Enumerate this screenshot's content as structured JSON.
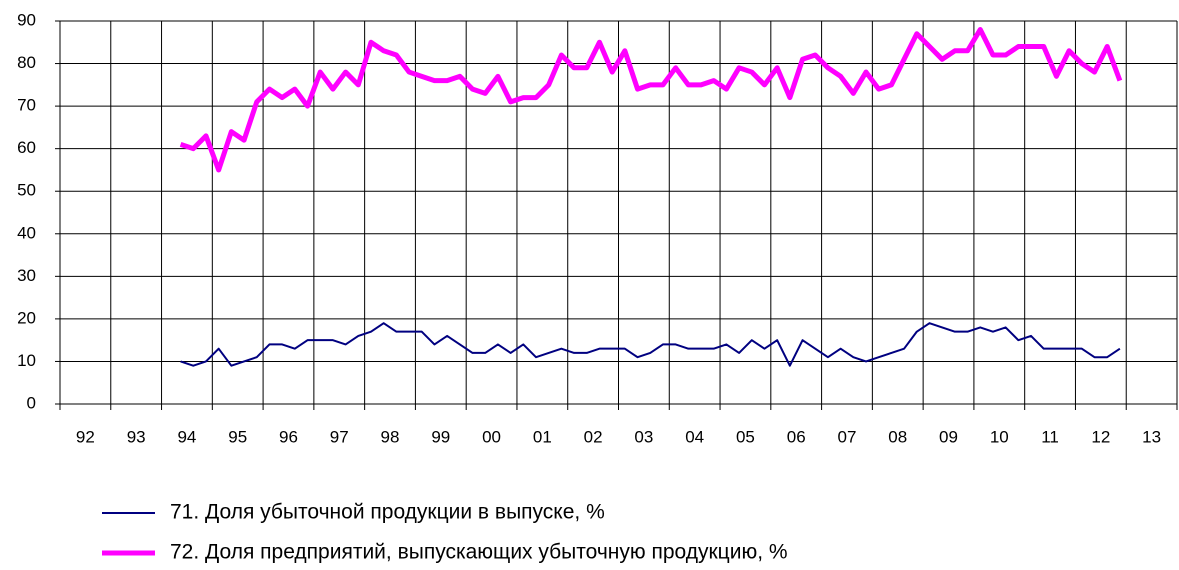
{
  "chart_data": {
    "type": "line",
    "xlim": [
      1992,
      2014
    ],
    "xticks": [
      {
        "value": 1992.5,
        "label": "92"
      },
      {
        "value": 1993.5,
        "label": "93"
      },
      {
        "value": 1994.5,
        "label": "94"
      },
      {
        "value": 1995.5,
        "label": "95"
      },
      {
        "value": 1996.5,
        "label": "96"
      },
      {
        "value": 1997.5,
        "label": "97"
      },
      {
        "value": 1998.5,
        "label": "98"
      },
      {
        "value": 1999.5,
        "label": "99"
      },
      {
        "value": 2000.5,
        "label": "00"
      },
      {
        "value": 2001.5,
        "label": "01"
      },
      {
        "value": 2002.5,
        "label": "02"
      },
      {
        "value": 2003.5,
        "label": "03"
      },
      {
        "value": 2004.5,
        "label": "04"
      },
      {
        "value": 2005.5,
        "label": "05"
      },
      {
        "value": 2006.5,
        "label": "06"
      },
      {
        "value": 2007.5,
        "label": "07"
      },
      {
        "value": 2008.5,
        "label": "08"
      },
      {
        "value": 2009.5,
        "label": "09"
      },
      {
        "value": 2010.5,
        "label": "10"
      },
      {
        "value": 2011.5,
        "label": "11"
      },
      {
        "value": 2012.5,
        "label": "12"
      },
      {
        "value": 2013.5,
        "label": "13"
      }
    ],
    "ylim": [
      0,
      90
    ],
    "yticks": [
      0,
      10,
      20,
      30,
      40,
      50,
      60,
      70,
      80,
      90
    ],
    "grid": true,
    "x": [
      1994.375,
      1994.625,
      1994.875,
      1995.125,
      1995.375,
      1995.625,
      1995.875,
      1996.125,
      1996.375,
      1996.625,
      1996.875,
      1997.125,
      1997.375,
      1997.625,
      1997.875,
      1998.125,
      1998.375,
      1998.625,
      1998.875,
      1999.125,
      1999.375,
      1999.625,
      1999.875,
      2000.125,
      2000.375,
      2000.625,
      2000.875,
      2001.125,
      2001.375,
      2001.625,
      2001.875,
      2002.125,
      2002.375,
      2002.625,
      2002.875,
      2003.125,
      2003.375,
      2003.625,
      2003.875,
      2004.125,
      2004.375,
      2004.625,
      2004.875,
      2005.125,
      2005.375,
      2005.625,
      2005.875,
      2006.125,
      2006.375,
      2006.625,
      2006.875,
      2007.125,
      2007.375,
      2007.625,
      2007.875,
      2008.125,
      2008.375,
      2008.625,
      2008.875,
      2009.125,
      2009.375,
      2009.625,
      2009.875,
      2010.125,
      2010.375,
      2010.625,
      2010.875,
      2011.125,
      2011.375,
      2011.625,
      2011.875,
      2012.125,
      2012.375,
      2012.625,
      2012.875
    ],
    "series": [
      {
        "name": "71. Доля убыточной продукции в выпуске, %",
        "color": "#000080",
        "width": 2,
        "values": [
          10,
          9,
          10,
          13,
          9,
          10,
          11,
          14,
          14,
          13,
          15,
          15,
          15,
          14,
          16,
          17,
          19,
          17,
          17,
          17,
          14,
          16,
          14,
          12,
          12,
          14,
          12,
          14,
          11,
          12,
          13,
          12,
          12,
          13,
          13,
          13,
          11,
          12,
          14,
          14,
          13,
          13,
          13,
          14,
          12,
          15,
          13,
          15,
          9,
          15,
          13,
          11,
          13,
          11,
          10,
          11,
          12,
          13,
          17,
          19,
          18,
          17,
          17,
          18,
          17,
          18,
          15,
          16,
          13,
          13,
          13,
          13,
          11,
          11,
          13
        ]
      },
      {
        "name": "72. Доля предприятий, выпускающих убыточную продукцию, %",
        "color": "#ff00ff",
        "width": 5,
        "values": [
          61,
          60,
          63,
          55,
          64,
          62,
          71,
          74,
          72,
          74,
          70,
          78,
          74,
          78,
          75,
          85,
          83,
          82,
          78,
          77,
          76,
          76,
          77,
          74,
          73,
          77,
          71,
          72,
          72,
          75,
          82,
          79,
          79,
          85,
          78,
          83,
          74,
          75,
          75,
          79,
          75,
          75,
          76,
          74,
          79,
          78,
          75,
          79,
          72,
          81,
          82,
          79,
          77,
          73,
          78,
          74,
          75,
          81,
          87,
          84,
          81,
          83,
          83,
          88,
          82,
          82,
          84,
          84,
          84,
          77,
          83,
          80,
          78,
          84,
          76
        ]
      }
    ]
  }
}
